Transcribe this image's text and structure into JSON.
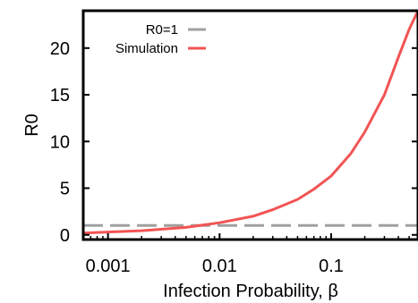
{
  "chart_data": {
    "type": "line",
    "xscale": "log",
    "xlabel": "Infection Probability, β",
    "ylabel": "R0",
    "xlim": [
      0.0006,
      0.6
    ],
    "ylim": [
      -0.5,
      24
    ],
    "xticks": [
      {
        "value": 0.001,
        "label": "0.001"
      },
      {
        "value": 0.01,
        "label": "0.01"
      },
      {
        "value": 0.1,
        "label": "0.1"
      }
    ],
    "yticks": [
      {
        "value": 0,
        "label": "0"
      },
      {
        "value": 5,
        "label": "5"
      },
      {
        "value": 10,
        "label": "10"
      },
      {
        "value": 15,
        "label": "15"
      },
      {
        "value": 20,
        "label": "20"
      }
    ],
    "grid": false,
    "legend_position": "top-left",
    "series": [
      {
        "name": "R0=1",
        "style": "dashed",
        "color": "#a0a0a0",
        "x": [
          0.0006,
          0.6
        ],
        "y": [
          1,
          1
        ]
      },
      {
        "name": "Simulation",
        "style": "solid",
        "color": "#f25454",
        "x": [
          0.0006,
          0.001,
          0.002,
          0.005,
          0.01,
          0.02,
          0.03,
          0.05,
          0.07,
          0.1,
          0.15,
          0.2,
          0.3,
          0.4,
          0.5,
          0.6
        ],
        "y": [
          0.2,
          0.3,
          0.45,
          0.8,
          1.3,
          2.0,
          2.7,
          3.8,
          4.9,
          6.3,
          8.7,
          11.0,
          15.0,
          19.0,
          22.0,
          24.0
        ]
      }
    ]
  }
}
